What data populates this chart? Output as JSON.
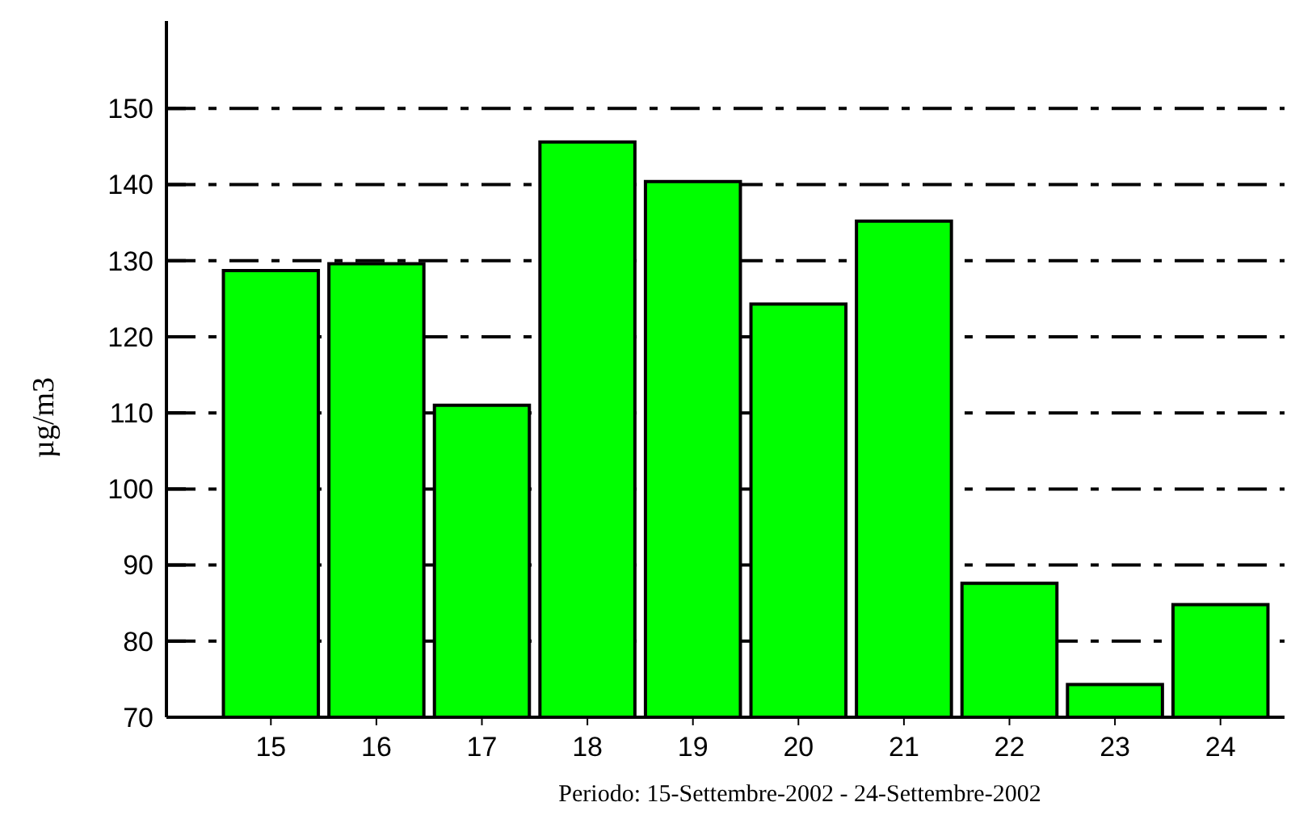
{
  "chart_data": {
    "type": "bar",
    "xlabel": "Periodo: 15-Settembre-2002 - 24-Settembre-2002",
    "ylabel": "µg/m3",
    "categories": [
      "15",
      "16",
      "17",
      "18",
      "19",
      "20",
      "21",
      "22",
      "23",
      "24"
    ],
    "values": [
      128.7,
      129.6,
      111,
      145.6,
      140.4,
      124.3,
      135.2,
      87.6,
      74.3,
      84.8
    ],
    "color": "#00ff00",
    "ylim": [
      70,
      161.5
    ],
    "yticks": [
      70,
      80,
      90,
      100,
      110,
      120,
      130,
      140,
      150
    ],
    "grid": "y"
  }
}
